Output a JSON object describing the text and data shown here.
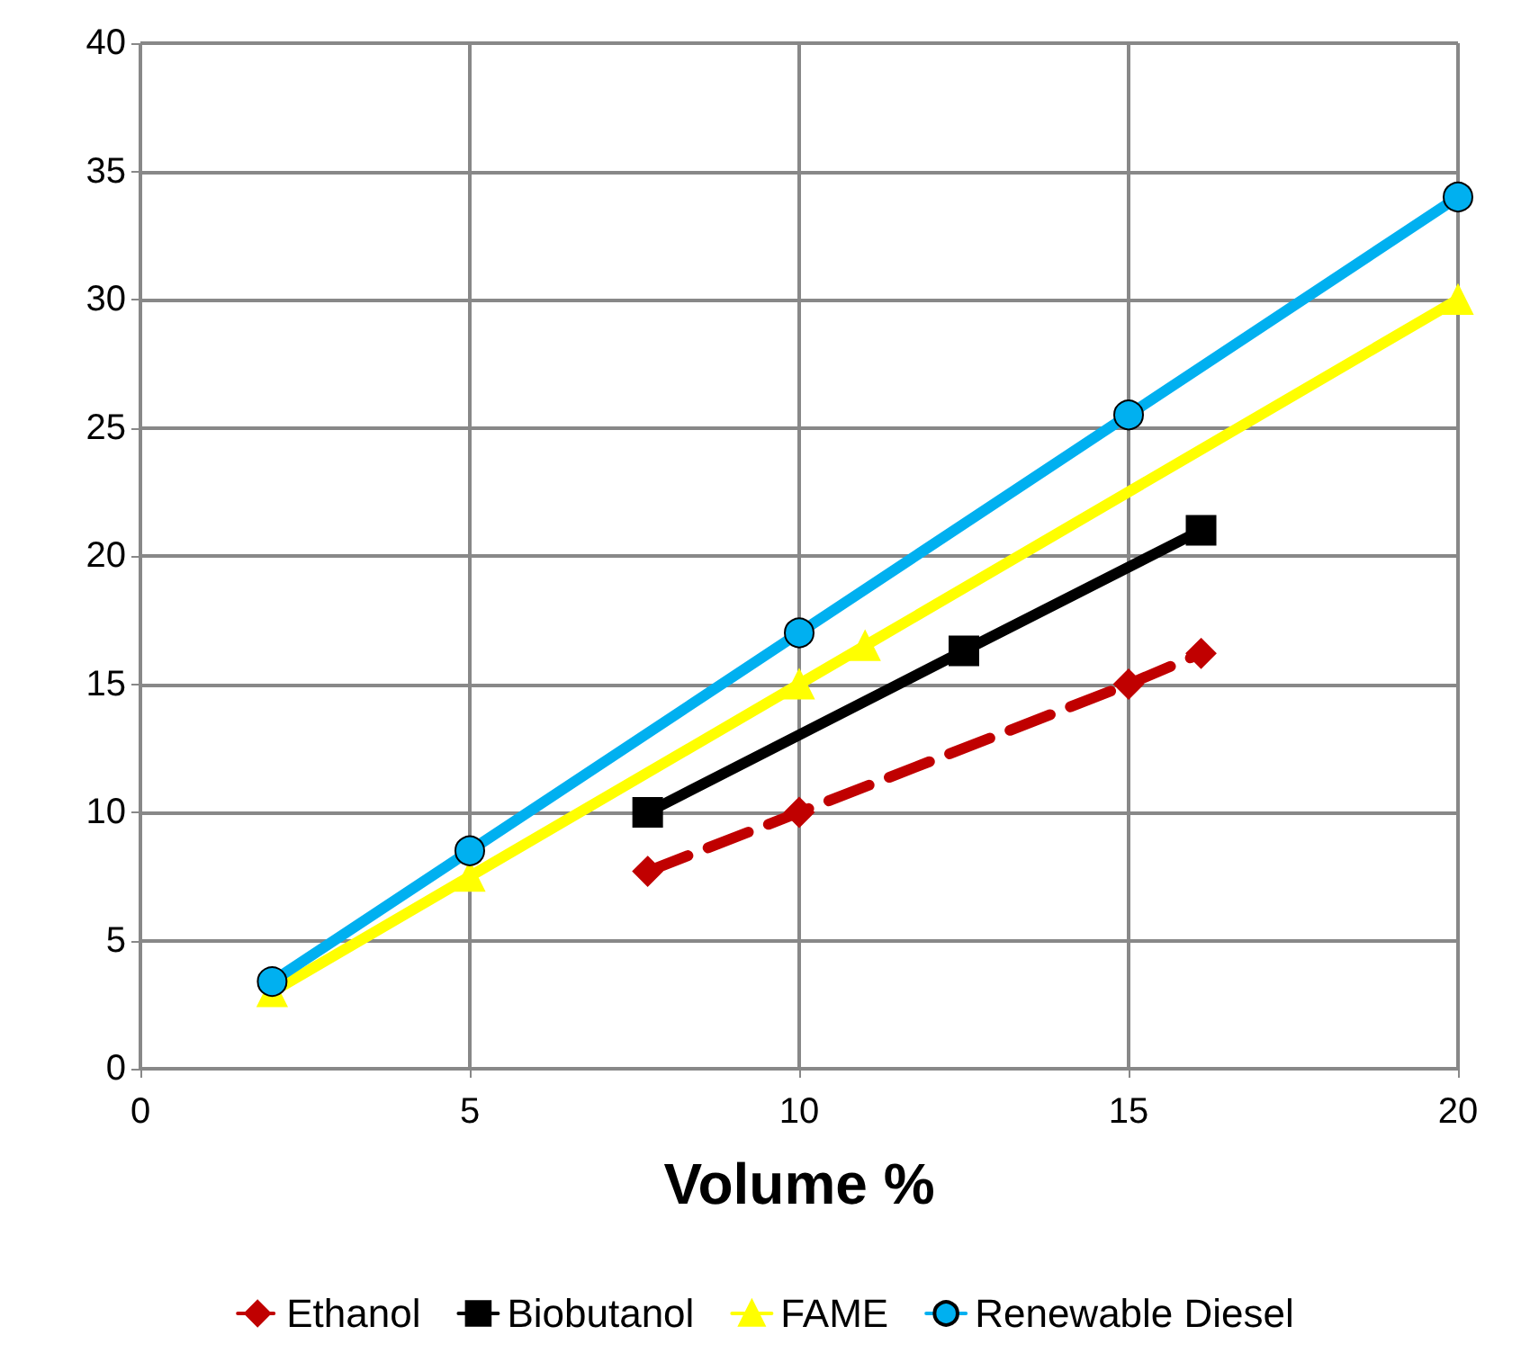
{
  "chart_data": {
    "type": "line",
    "xlabel": "Volume %",
    "xlim": [
      0,
      20
    ],
    "xticks": [
      0,
      5,
      10,
      15,
      20
    ],
    "ylim": [
      0,
      40
    ],
    "yticks": [
      0,
      5,
      10,
      15,
      20,
      25,
      30,
      35,
      40
    ],
    "grid": true,
    "legend": "bottom",
    "series": [
      {
        "name": "Ethanol",
        "color": "#c00000",
        "marker": "diamond",
        "line_style": "dashed",
        "x": [
          7.7,
          10,
          15,
          16.1
        ],
        "values": [
          7.7,
          10,
          15,
          16.2
        ]
      },
      {
        "name": "Biobutanol",
        "color": "#000000",
        "marker": "square",
        "line_style": "solid",
        "x": [
          7.7,
          12.5,
          16.1
        ],
        "values": [
          10,
          16.3,
          21
        ]
      },
      {
        "name": "FAME",
        "color": "#ffff00",
        "marker": "triangle",
        "line_style": "solid",
        "x": [
          2,
          5,
          10,
          11,
          20
        ],
        "values": [
          3,
          7.5,
          15,
          16.5,
          30
        ]
      },
      {
        "name": "Renewable Diesel",
        "color": "#00b0f0",
        "marker": "circle",
        "line_style": "solid",
        "x": [
          2,
          5,
          10,
          15,
          20
        ],
        "values": [
          3.4,
          8.5,
          17,
          25.5,
          34
        ]
      }
    ]
  }
}
